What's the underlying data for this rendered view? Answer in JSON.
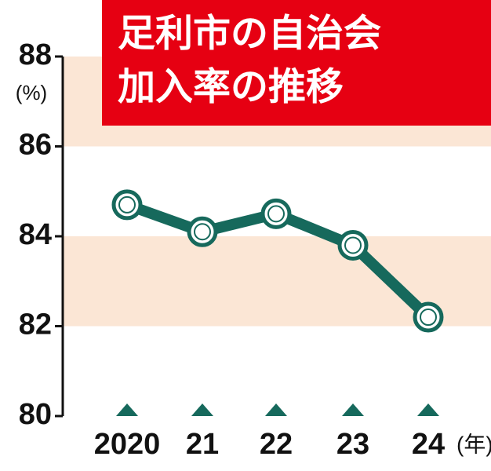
{
  "chart_data": {
    "type": "line",
    "title": [
      "足利市の自治会",
      "加入率の推移"
    ],
    "y_unit": "(%)",
    "x_unit": "(年)",
    "categories": [
      "2020",
      "21",
      "22",
      "23",
      "24"
    ],
    "values": [
      84.7,
      84.1,
      84.5,
      83.8,
      82.2
    ],
    "color": "#16695c",
    "ylim": [
      80,
      88
    ],
    "yticks": [
      80,
      82,
      84,
      86,
      88
    ],
    "bands": true
  }
}
